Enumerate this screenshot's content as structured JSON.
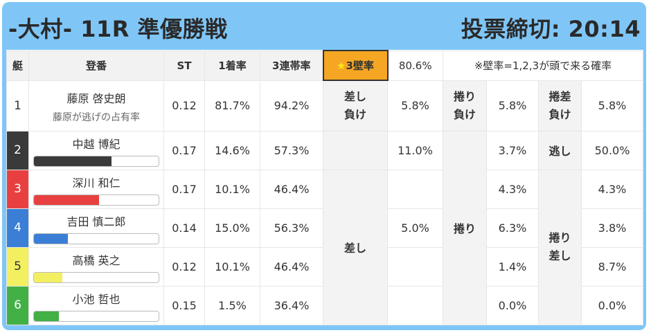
{
  "header": {
    "race": "-大村- 11R 準優勝戦",
    "deadline": "投票締切: 20:14"
  },
  "columns": {
    "boat": "艇",
    "racer": "登番",
    "st": "ST",
    "win": "1着率",
    "top3": "3連帯率",
    "star_mark": "★",
    "wall": "3壁率",
    "wall_value": "80.6%",
    "note": "※壁率=1,2,3が頭で来る確率"
  },
  "colors": {
    "boat2": "#3a3a3a",
    "boat3": "#e84040",
    "boat4": "#3a7fd5",
    "boat5": "#f2ef61",
    "boat6": "#43b046",
    "star_header": "#f5a623"
  },
  "rows": [
    {
      "boat": "1",
      "name": "藤原 啓史朗",
      "sub": "藤原が逃げの占有率",
      "st": "0.12",
      "win": "81.7%",
      "top3": "94.2%"
    },
    {
      "boat": "2",
      "name": "中越 博紀",
      "st": "0.17",
      "win": "14.6%",
      "top3": "57.3%",
      "bar": 0.62
    },
    {
      "boat": "3",
      "name": "深川 和仁",
      "st": "0.17",
      "win": "10.1%",
      "top3": "46.4%",
      "bar": 0.52
    },
    {
      "boat": "4",
      "name": "吉田 慎二郎",
      "st": "0.14",
      "win": "15.0%",
      "top3": "56.3%",
      "bar": 0.27
    },
    {
      "boat": "5",
      "name": "高橋 英之",
      "st": "0.12",
      "win": "10.1%",
      "top3": "46.4%",
      "bar": 0.23
    },
    {
      "boat": "6",
      "name": "小池 哲也",
      "st": "0.15",
      "win": "1.5%",
      "top3": "36.4%",
      "bar": 0.2
    }
  ],
  "row1_stats": {
    "sashimake_line1": "差し",
    "sashimake_line2": "負け",
    "sashimake": "5.8%",
    "makurimake_line1": "捲り",
    "makurimake_line2": "負け",
    "makurimake": "5.8%",
    "makurisashimake_line1": "捲差",
    "makurisashimake_line2": "負け",
    "makurisashimake": "5.8%"
  },
  "sashi": {
    "label": "差し",
    "value_boat2": "11.0%",
    "value_boat4": "5.0%"
  },
  "makuri": {
    "label": "捲り",
    "values": [
      "3.7%",
      "4.3%",
      "6.3%",
      "1.4%",
      "0.0%"
    ]
  },
  "nige": {
    "label": "逃し",
    "value": "50.0%"
  },
  "makurisashi": {
    "label_line1": "捲り",
    "label_line2": "差し",
    "values": [
      "4.3%",
      "3.8%",
      "8.7%",
      "0.0%"
    ]
  }
}
